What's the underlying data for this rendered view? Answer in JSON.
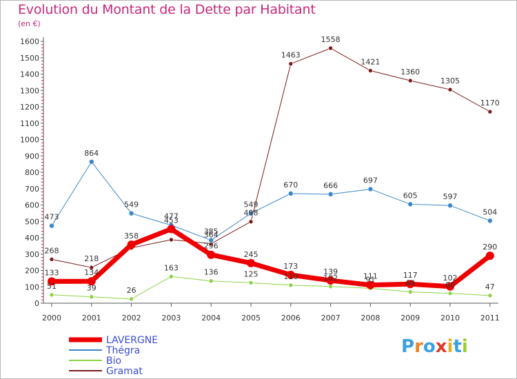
{
  "title": "Evolution du Montant de la Dette par Habitant",
  "subtitle": "(en €)",
  "logo": {
    "text": "Proxiti",
    "colors": [
      "#3aa0e0",
      "#e8852a",
      "#3aa0e0",
      "#e03a2a",
      "#e0b02a",
      "#3aa0e0",
      "#9acd32"
    ]
  },
  "chart_data": {
    "type": "line",
    "x": [
      "2000",
      "2001",
      "2002",
      "2003",
      "2004",
      "2005",
      "2006",
      "2007",
      "2008",
      "2009",
      "2010",
      "2011"
    ],
    "ylim": [
      0,
      1600
    ],
    "yticks": [
      0,
      100,
      200,
      300,
      400,
      500,
      600,
      700,
      800,
      900,
      1000,
      1100,
      1200,
      1300,
      1400,
      1500,
      1600
    ],
    "grid": false,
    "legend_position": "bottom-left",
    "series": [
      {
        "name": "Gramat",
        "color": "#7a1a1a",
        "width": 1,
        "marker": 3,
        "labelColor": "#333333",
        "values": [
          268,
          218,
          338,
          388,
          364,
          498,
          1463,
          1558,
          1421,
          1360,
          1305,
          1170
        ],
        "labels": [
          "268",
          "218",
          "",
          "",
          "364",
          "498",
          "1463",
          "1558",
          "1421",
          "1360",
          "1305",
          "1170"
        ]
      },
      {
        "name": "Thégra",
        "color": "#3a86c8",
        "width": 1,
        "marker": 3.5,
        "labelColor": "#333333",
        "values": [
          473,
          864,
          549,
          477,
          385,
          549,
          670,
          666,
          697,
          605,
          597,
          504
        ],
        "labels": [
          "473",
          "864",
          "549",
          "477",
          "385",
          "549",
          "670",
          "666",
          "697",
          "605",
          "597",
          "504"
        ]
      },
      {
        "name": "Bio",
        "color": "#8ed048",
        "width": 1,
        "marker": 3,
        "labelColor": "#333333",
        "values": [
          51,
          39,
          26,
          163,
          136,
          125,
          110,
          102,
          91,
          69,
          60,
          47
        ],
        "labels": [
          "51",
          "39",
          "26",
          "163",
          "136",
          "125",
          "110",
          "102",
          "91",
          "69",
          "60",
          "47"
        ]
      },
      {
        "name": "LAVERGNE",
        "color": "#ee0000",
        "width": 7,
        "marker": 6,
        "labelColor": "#333333",
        "values": [
          133,
          134,
          358,
          453,
          296,
          245,
          173,
          139,
          111,
          117,
          102,
          290
        ],
        "labels": [
          "133",
          "134",
          "358",
          "453",
          "296",
          "245",
          "173",
          "139",
          "111",
          "117",
          "102",
          "290"
        ]
      }
    ],
    "legend": [
      {
        "name": "LAVERGNE",
        "color": "#ee0000",
        "thick": true
      },
      {
        "name": "Thégra",
        "color": "#3a86c8",
        "thick": false
      },
      {
        "name": "Bio",
        "color": "#8ed048",
        "thick": false
      },
      {
        "name": "Gramat",
        "color": "#7a1a1a",
        "thick": false
      }
    ]
  }
}
